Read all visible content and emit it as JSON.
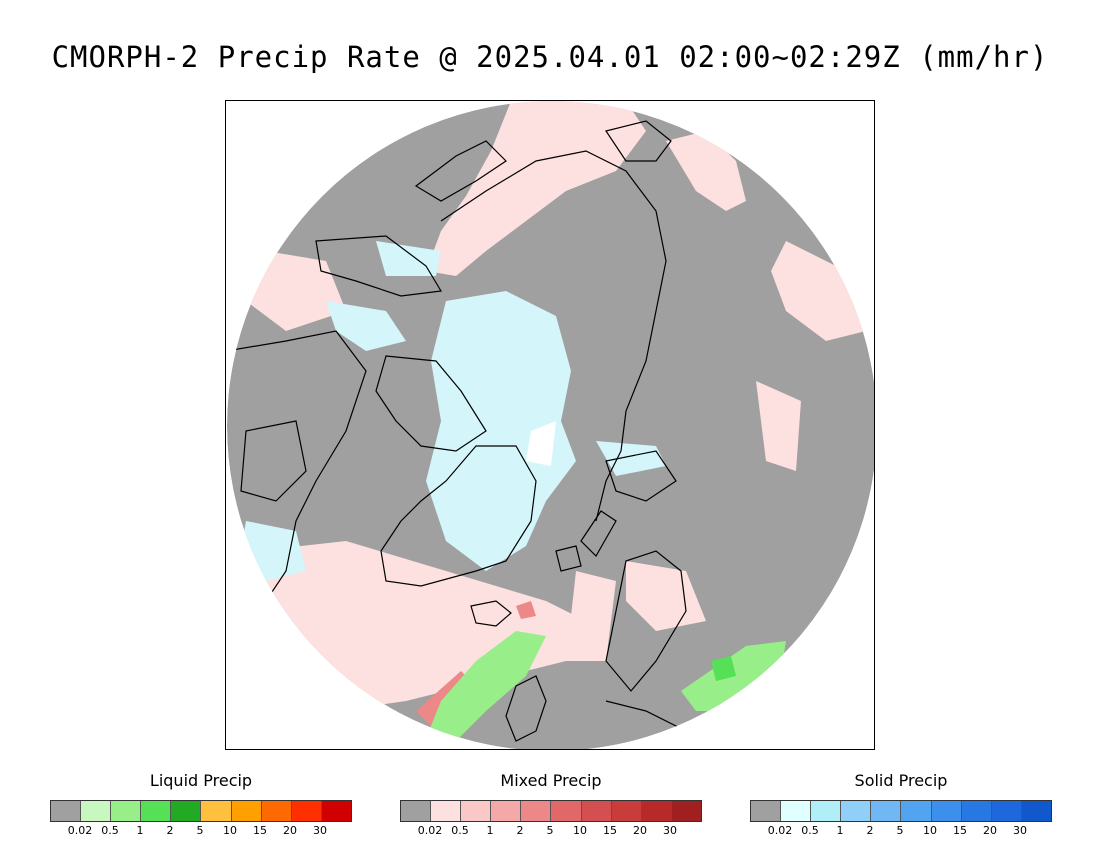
{
  "title": "CMORPH-2 Precip Rate @ 2025.04.01 02:00~02:29Z (mm/hr)",
  "map": {
    "projection": "north-polar-stereographic",
    "colors": {
      "no_data_gray": "#a0a0a0",
      "coastline": "#000000",
      "background": "#ffffff"
    }
  },
  "legends": [
    {
      "title": "Liquid Precip",
      "colors": [
        "#a0a0a0",
        "#c8f7c0",
        "#98ee88",
        "#55e055",
        "#22aa22",
        "#ffc040",
        "#ffa000",
        "#ff6a00",
        "#ff3000",
        "#d00000"
      ],
      "ticks": [
        "0.02",
        "0.5",
        "1",
        "2",
        "5",
        "10",
        "15",
        "20",
        "30"
      ]
    },
    {
      "title": "Mixed Precip",
      "colors": [
        "#a0a0a0",
        "#fde0e0",
        "#fbc8c8",
        "#f4a8a8",
        "#ec8888",
        "#e06868",
        "#d45050",
        "#c83c3c",
        "#b82a2a",
        "#a02020"
      ],
      "ticks": [
        "0.02",
        "0.5",
        "1",
        "2",
        "5",
        "10",
        "15",
        "20",
        "30"
      ]
    },
    {
      "title": "Solid Precip",
      "colors": [
        "#a0a0a0",
        "#e0ffff",
        "#b0eef8",
        "#90d0f8",
        "#70b8f4",
        "#50a4f0",
        "#3c90ec",
        "#2878e4",
        "#1c68dc",
        "#1058cc"
      ],
      "ticks": [
        "0.02",
        "0.5",
        "1",
        "2",
        "5",
        "10",
        "15",
        "20",
        "30"
      ]
    }
  ]
}
